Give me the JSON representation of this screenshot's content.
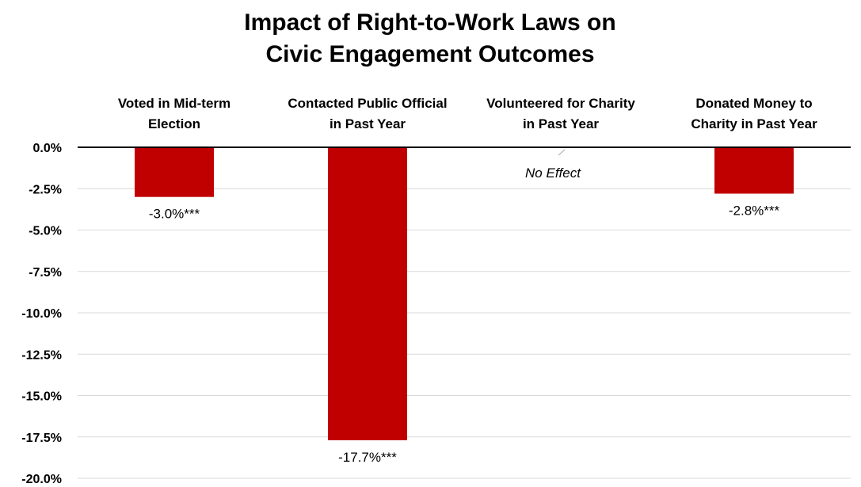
{
  "chart_data": {
    "type": "bar",
    "title": [
      "Impact of Right-to-Work Laws on",
      "Civic Engagement Outcomes"
    ],
    "categories": [
      [
        "Voted in Mid-term",
        "Election"
      ],
      [
        "Contacted Public Official",
        "in Past Year"
      ],
      [
        "Volunteered for Charity",
        "in Past Year"
      ],
      [
        "Donated Money to",
        "Charity in Past Year"
      ]
    ],
    "values": [
      -3.0,
      -17.7,
      0.0,
      -2.8
    ],
    "data_labels": [
      "-3.0%***",
      "-17.7%***",
      "",
      "-2.8%***"
    ],
    "annotations": [
      {
        "category_index": 2,
        "text": "No Effect"
      }
    ],
    "y_ticks": [
      0.0,
      -2.5,
      -5.0,
      -7.5,
      -10.0,
      -12.5,
      -15.0,
      -17.5,
      -20.0
    ],
    "y_tick_labels": [
      "0.0%",
      "-2.5%",
      "-5.0%",
      "-7.5%",
      "-10.0%",
      "-12.5%",
      "-15.0%",
      "-17.5%",
      "-20.0%"
    ],
    "ylim": [
      -20.0,
      0.0
    ],
    "grid": true,
    "legend": "none",
    "xlabel": "",
    "ylabel": "",
    "colors": {
      "bar": "#c00000",
      "gridline": "#d9d9d9",
      "axis": "#000000"
    }
  }
}
